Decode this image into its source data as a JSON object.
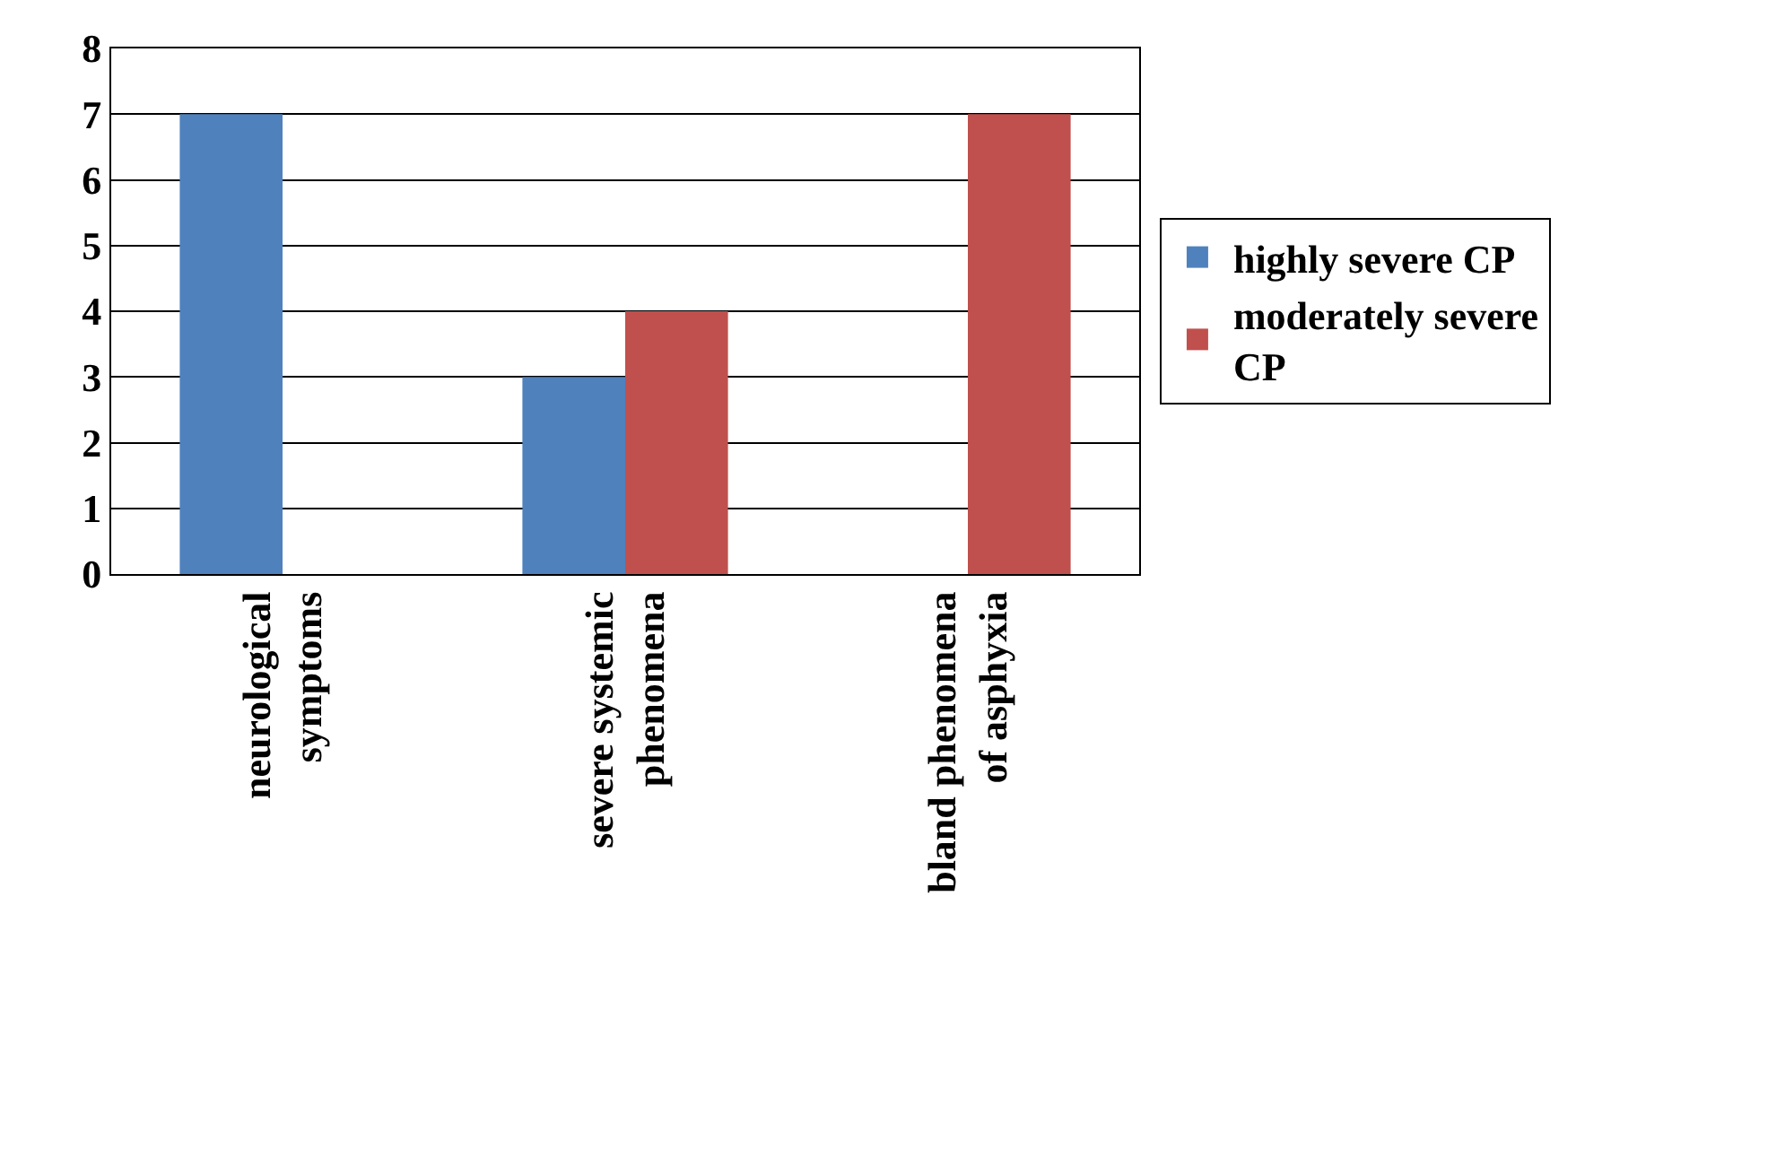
{
  "chart_data": {
    "type": "bar",
    "categories": [
      "neurological symptoms",
      "severe systemic phenomena",
      "bland phenomena of asphyxia"
    ],
    "series": [
      {
        "name": "highly severe CP",
        "color": "#4f81bd",
        "values": [
          7,
          3,
          null
        ]
      },
      {
        "name": "moderately severe CP",
        "color": "#c0504d",
        "values": [
          null,
          4,
          7
        ]
      }
    ],
    "ylim": [
      0,
      8
    ],
    "yticks": [
      0,
      1,
      2,
      3,
      4,
      5,
      6,
      7,
      8
    ],
    "grid": "y",
    "legend": "right"
  }
}
